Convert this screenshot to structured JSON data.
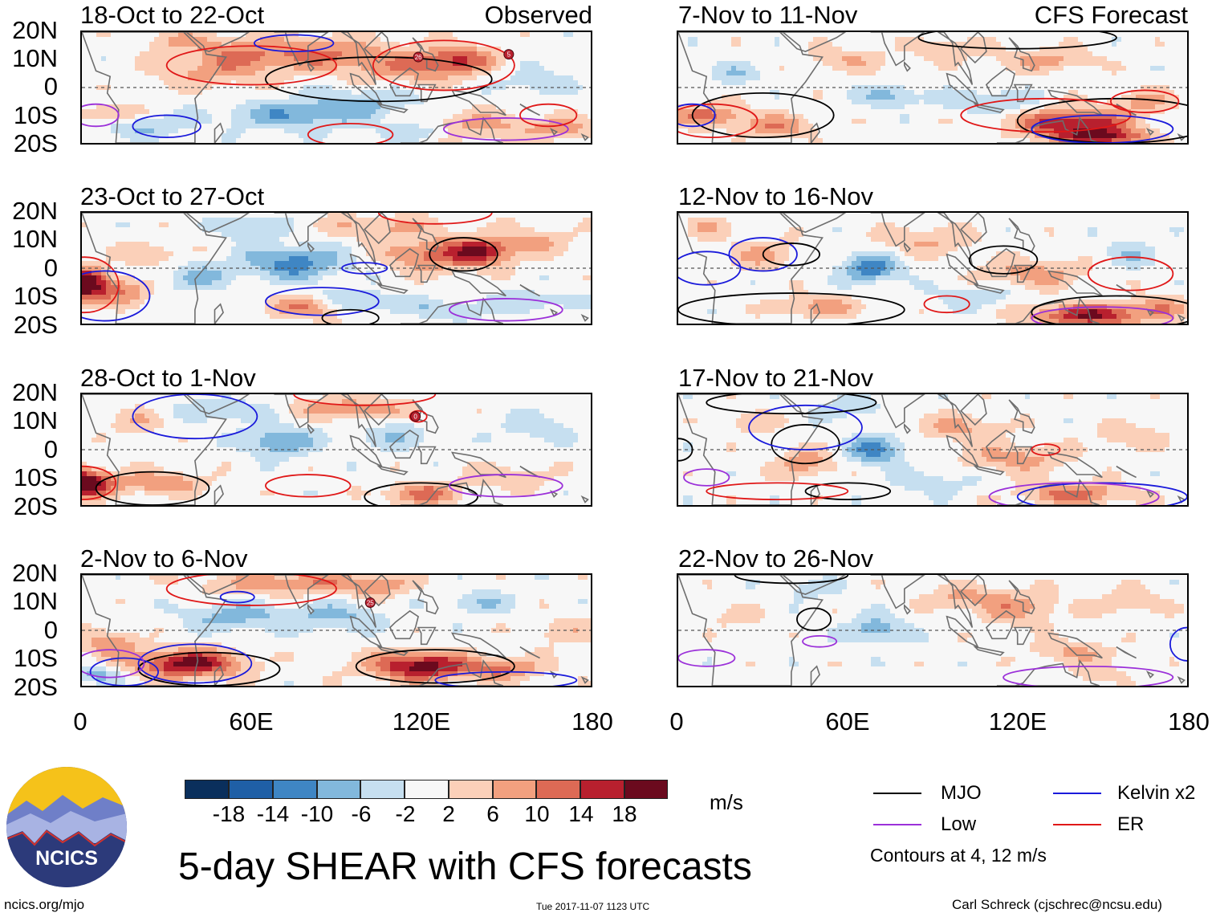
{
  "columns": [
    {
      "tag": "Observed"
    },
    {
      "tag": "CFS Forecast"
    }
  ],
  "panels": [
    {
      "title": "18-Oct to 22-Oct",
      "col": 0,
      "row": 0
    },
    {
      "title": "23-Oct to 27-Oct",
      "col": 0,
      "row": 1
    },
    {
      "title": "28-Oct to 1-Nov",
      "col": 0,
      "row": 2
    },
    {
      "title": "2-Nov to 6-Nov",
      "col": 0,
      "row": 3
    },
    {
      "title": "7-Nov to 11-Nov",
      "col": 1,
      "row": 0
    },
    {
      "title": "12-Nov to 16-Nov",
      "col": 1,
      "row": 1
    },
    {
      "title": "17-Nov to 21-Nov",
      "col": 1,
      "row": 2
    },
    {
      "title": "22-Nov to 26-Nov",
      "col": 1,
      "row": 3
    }
  ],
  "lat_labels": [
    "20N",
    "10N",
    "0",
    "10S",
    "20S"
  ],
  "lon_labels": [
    "0",
    "60E",
    "120E",
    "180"
  ],
  "storm_markers": [
    {
      "panel": 0,
      "label": "26",
      "lon": 119,
      "lat": 11
    },
    {
      "panel": 0,
      "label": "5",
      "lon": 151,
      "lat": 12
    },
    {
      "panel": 2,
      "label": "0",
      "lon": 118,
      "lat": 12
    },
    {
      "panel": 3,
      "label": "25",
      "lon": 102,
      "lat": 10
    }
  ],
  "colorbar": {
    "ticks": [
      "-18",
      "-14",
      "-10",
      "-6",
      "-2",
      "2",
      "6",
      "10",
      "14",
      "18"
    ],
    "colors": [
      "#0a2f5c",
      "#1f5fa6",
      "#3f86c4",
      "#82b8dc",
      "#c6dff0",
      "#f7f7f7",
      "#fbd0b9",
      "#f2a07f",
      "#dd6a55",
      "#b8202e",
      "#6b0a1e"
    ],
    "units": "m/s"
  },
  "title": "5-day SHEAR with CFS forecasts",
  "legend": {
    "items": [
      {
        "label": "MJO",
        "color": "#000000"
      },
      {
        "label": "Kelvin x2",
        "color": "#1a1adb"
      },
      {
        "label": "Low",
        "color": "#9b30d9"
      },
      {
        "label": "ER",
        "color": "#e01818"
      }
    ],
    "note": "Contours at 4, 12 m/s"
  },
  "logo_text": "NCICS",
  "footer": {
    "left": "ncics.org/mjo",
    "center": "Tue 2017-11-07 1123 UTC",
    "right": "Carl Schreck (cjschrec@ncsu.edu)"
  }
}
